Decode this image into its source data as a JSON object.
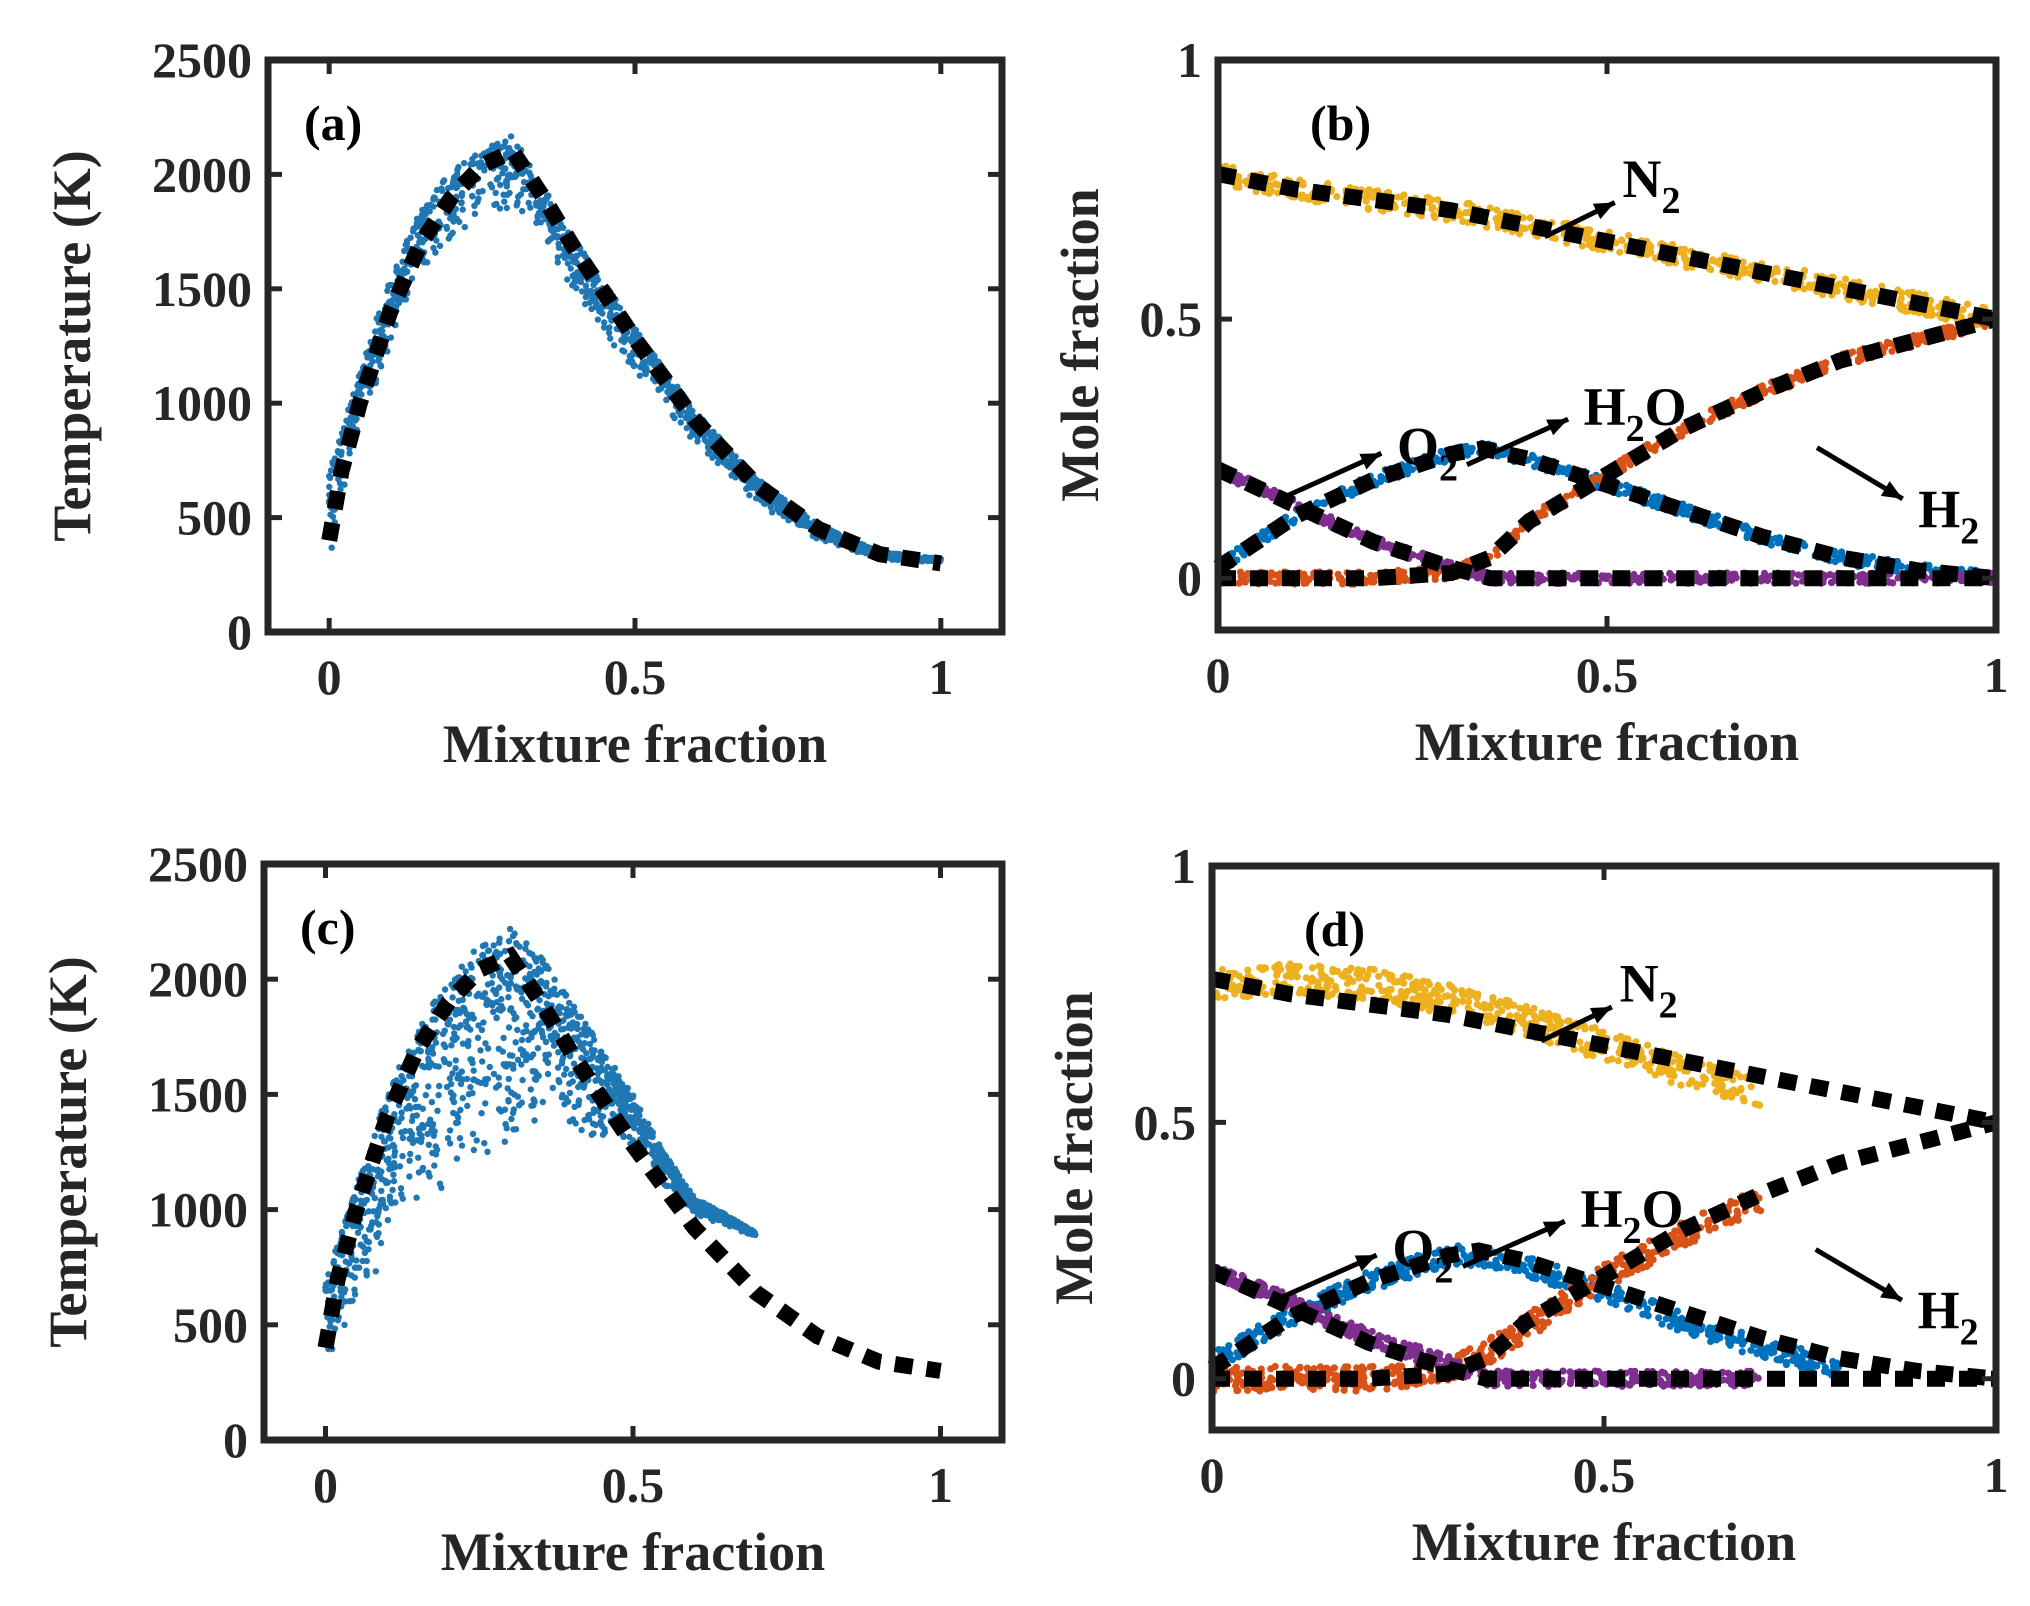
{
  "chart_data": [
    {
      "panel": "(a)",
      "type": "scatter",
      "xlabel": "Mixture fraction",
      "ylabel": "Temperature (K)",
      "xlim": [
        -0.1,
        1.1
      ],
      "ylim": [
        0,
        2500
      ],
      "xticks": [
        "0",
        "0.5",
        "1"
      ],
      "yticks": [
        "0",
        "500",
        "1000",
        "1500",
        "2000",
        "2500"
      ],
      "grid": false,
      "series": [
        {
          "role": "reference-dashed",
          "color": "#000000",
          "x": [
            0,
            0.02,
            0.05,
            0.1,
            0.15,
            0.2,
            0.25,
            0.3,
            0.35,
            0.4,
            0.5,
            0.6,
            0.7,
            0.8,
            0.9,
            1.0
          ],
          "y": [
            400,
            700,
            1000,
            1400,
            1700,
            1900,
            2040,
            2100,
            1900,
            1680,
            1280,
            920,
            640,
            450,
            340,
            300
          ]
        },
        {
          "role": "scatter-band",
          "color": "#1f77b4",
          "x": [
            0,
            0.05,
            0.1,
            0.15,
            0.2,
            0.25,
            0.3,
            0.35,
            0.4,
            0.5,
            0.6,
            0.7,
            0.8,
            0.9,
            1.0
          ],
          "upper": [
            700,
            1150,
            1550,
            1850,
            2020,
            2110,
            2170,
            1950,
            1720,
            1330,
            960,
            670,
            470,
            350,
            320
          ],
          "lower": [
            300,
            900,
            1250,
            1550,
            1700,
            1800,
            1850,
            1680,
            1480,
            1130,
            820,
            560,
            400,
            320,
            300
          ]
        }
      ]
    },
    {
      "panel": "(b)",
      "type": "scatter",
      "xlabel": "Mixture fraction",
      "ylabel": "Mole fraction",
      "xlim": [
        0,
        1
      ],
      "ylim": [
        -0.1,
        1
      ],
      "xticks": [
        "0",
        "0.5",
        "1"
      ],
      "yticks": [
        "0",
        "0.5",
        "1"
      ],
      "grid": false,
      "labels": [
        {
          "base": "N",
          "sub": "2"
        },
        {
          "base": "O",
          "sub": "2"
        },
        {
          "pre": "H",
          "sub": "2",
          "post": "O"
        },
        {
          "base": "H",
          "sub": "2"
        }
      ],
      "series": [
        {
          "species": "N2",
          "color": "#edb120",
          "x": [
            0,
            0.1,
            0.2,
            0.3,
            0.4,
            0.5,
            0.6,
            0.7,
            0.8,
            0.9,
            1.0
          ],
          "y": [
            0.78,
            0.75,
            0.73,
            0.71,
            0.68,
            0.65,
            0.62,
            0.59,
            0.56,
            0.53,
            0.5
          ],
          "band": 0.02
        },
        {
          "species": "O2",
          "color": "#7e2f8e",
          "x": [
            0,
            0.1,
            0.2,
            0.3,
            0.35,
            0.4,
            0.5,
            0.6,
            0.7,
            0.8,
            0.9,
            1.0
          ],
          "y": [
            0.21,
            0.14,
            0.07,
            0.02,
            0.0,
            0.0,
            0.0,
            0.0,
            0.0,
            0.0,
            0.0,
            0.0
          ],
          "band": 0.01
        },
        {
          "species": "H2O",
          "color": "#0072bd",
          "x": [
            0,
            0.1,
            0.2,
            0.3,
            0.34,
            0.4,
            0.5,
            0.6,
            0.7,
            0.8,
            0.9,
            1.0
          ],
          "y": [
            0.02,
            0.12,
            0.19,
            0.24,
            0.25,
            0.23,
            0.18,
            0.13,
            0.08,
            0.04,
            0.015,
            0.0
          ],
          "band": 0.012
        },
        {
          "species": "H2",
          "color": "#d95319",
          "x": [
            0,
            0.1,
            0.2,
            0.3,
            0.35,
            0.4,
            0.5,
            0.6,
            0.7,
            0.8,
            0.9,
            1.0
          ],
          "y": [
            0.0,
            0.0,
            0.0,
            0.01,
            0.04,
            0.11,
            0.2,
            0.29,
            0.36,
            0.42,
            0.46,
            0.5
          ],
          "band": 0.012
        }
      ],
      "reference": [
        {
          "x": [
            0,
            0.1,
            0.2,
            0.3,
            0.4,
            0.5,
            0.6,
            0.7,
            0.8,
            0.9,
            1.0
          ],
          "y": [
            0.78,
            0.75,
            0.73,
            0.71,
            0.68,
            0.65,
            0.62,
            0.59,
            0.56,
            0.53,
            0.5
          ]
        },
        {
          "x": [
            0,
            0.1,
            0.2,
            0.3,
            0.35,
            0.45,
            0.6,
            0.8,
            1.0
          ],
          "y": [
            0.21,
            0.14,
            0.07,
            0.02,
            0.0,
            0.0,
            0.0,
            0.0,
            0.0
          ]
        },
        {
          "x": [
            0,
            0.1,
            0.2,
            0.3,
            0.34,
            0.4,
            0.5,
            0.6,
            0.7,
            0.8,
            0.9,
            1.0
          ],
          "y": [
            0.02,
            0.12,
            0.19,
            0.24,
            0.25,
            0.23,
            0.18,
            0.13,
            0.08,
            0.04,
            0.015,
            0.0
          ]
        },
        {
          "x": [
            0,
            0.2,
            0.3,
            0.35,
            0.4,
            0.5,
            0.6,
            0.7,
            0.8,
            0.9,
            1.0
          ],
          "y": [
            0.0,
            0.0,
            0.01,
            0.04,
            0.11,
            0.2,
            0.29,
            0.36,
            0.42,
            0.46,
            0.5
          ]
        }
      ]
    },
    {
      "panel": "(c)",
      "type": "scatter",
      "xlabel": "Mixture fraction",
      "ylabel": "Temperature (K)",
      "xlim": [
        -0.1,
        1.1
      ],
      "ylim": [
        0,
        2500
      ],
      "xticks": [
        "0",
        "0.5",
        "1"
      ],
      "yticks": [
        "0",
        "500",
        "1000",
        "1500",
        "2000",
        "2500"
      ],
      "grid": false,
      "series": [
        {
          "role": "reference-dashed",
          "color": "#000000",
          "x": [
            0,
            0.02,
            0.05,
            0.1,
            0.15,
            0.2,
            0.25,
            0.3,
            0.35,
            0.4,
            0.5,
            0.6,
            0.7,
            0.8,
            0.9,
            1.0
          ],
          "y": [
            400,
            700,
            1000,
            1400,
            1700,
            1900,
            2040,
            2100,
            1900,
            1680,
            1280,
            920,
            640,
            450,
            340,
            300
          ]
        },
        {
          "role": "scatter-band",
          "color": "#1f77b4",
          "x": [
            0,
            0.05,
            0.1,
            0.15,
            0.2,
            0.25,
            0.3,
            0.35,
            0.4,
            0.5,
            0.55,
            0.6,
            0.65,
            0.7
          ],
          "upper": [
            700,
            1100,
            1500,
            1800,
            2000,
            2150,
            2230,
            2100,
            1900,
            1500,
            1250,
            1050,
            980,
            900
          ],
          "lower": [
            300,
            600,
            800,
            1000,
            1100,
            1200,
            1300,
            1400,
            1350,
            1250,
            1100,
            980,
            930,
            880
          ]
        }
      ]
    },
    {
      "panel": "(d)",
      "type": "scatter",
      "xlabel": "Mixture fraction",
      "ylabel": "Mole fraction",
      "xlim": [
        0,
        1
      ],
      "ylim": [
        -0.1,
        1
      ],
      "xticks": [
        "0",
        "0.5",
        "1"
      ],
      "yticks": [
        "0",
        "0.5",
        "1"
      ],
      "grid": false,
      "labels": [
        {
          "base": "N",
          "sub": "2"
        },
        {
          "base": "O",
          "sub": "2"
        },
        {
          "pre": "H",
          "sub": "2",
          "post": "O"
        },
        {
          "base": "H",
          "sub": "2"
        }
      ],
      "series": [
        {
          "species": "N2",
          "color": "#edb120",
          "x": [
            0,
            0.1,
            0.2,
            0.3,
            0.4,
            0.5,
            0.6,
            0.7
          ],
          "y": [
            0.77,
            0.78,
            0.77,
            0.74,
            0.7,
            0.65,
            0.6,
            0.56
          ],
          "band": 0.03
        },
        {
          "species": "O2",
          "color": "#7e2f8e",
          "x": [
            0,
            0.1,
            0.2,
            0.3,
            0.35,
            0.4,
            0.5,
            0.6,
            0.7
          ],
          "y": [
            0.21,
            0.15,
            0.08,
            0.03,
            0.0,
            0.0,
            0.0,
            0.0,
            0.0
          ],
          "band": 0.015
        },
        {
          "species": "H2O",
          "color": "#0072bd",
          "x": [
            0,
            0.1,
            0.2,
            0.3,
            0.34,
            0.4,
            0.5,
            0.6,
            0.7,
            0.8
          ],
          "y": [
            0.03,
            0.12,
            0.19,
            0.24,
            0.24,
            0.22,
            0.17,
            0.11,
            0.06,
            0.02
          ],
          "band": 0.02
        },
        {
          "species": "H2",
          "color": "#d95319",
          "x": [
            0,
            0.1,
            0.2,
            0.3,
            0.35,
            0.4,
            0.45,
            0.5,
            0.6,
            0.7
          ],
          "y": [
            0.0,
            0.0,
            0.0,
            0.02,
            0.05,
            0.1,
            0.15,
            0.2,
            0.28,
            0.35
          ],
          "band": 0.025
        }
      ],
      "reference": [
        {
          "x": [
            0,
            0.1,
            0.2,
            0.3,
            0.4,
            0.5,
            0.6,
            0.7,
            0.8,
            0.9,
            1.0
          ],
          "y": [
            0.78,
            0.75,
            0.73,
            0.71,
            0.68,
            0.65,
            0.62,
            0.59,
            0.56,
            0.53,
            0.5
          ]
        },
        {
          "x": [
            0,
            0.1,
            0.2,
            0.3,
            0.35,
            0.45,
            0.6,
            0.8,
            1.0
          ],
          "y": [
            0.21,
            0.14,
            0.07,
            0.02,
            0.0,
            0.0,
            0.0,
            0.0,
            0.0
          ]
        },
        {
          "x": [
            0,
            0.1,
            0.2,
            0.3,
            0.34,
            0.4,
            0.5,
            0.6,
            0.7,
            0.8,
            0.9,
            1.0
          ],
          "y": [
            0.02,
            0.12,
            0.19,
            0.24,
            0.25,
            0.23,
            0.18,
            0.13,
            0.08,
            0.04,
            0.015,
            0.0
          ]
        },
        {
          "x": [
            0,
            0.2,
            0.3,
            0.35,
            0.4,
            0.5,
            0.6,
            0.7,
            0.8,
            0.9,
            1.0
          ],
          "y": [
            0.0,
            0.0,
            0.01,
            0.04,
            0.11,
            0.2,
            0.29,
            0.36,
            0.42,
            0.46,
            0.5
          ]
        }
      ]
    }
  ]
}
